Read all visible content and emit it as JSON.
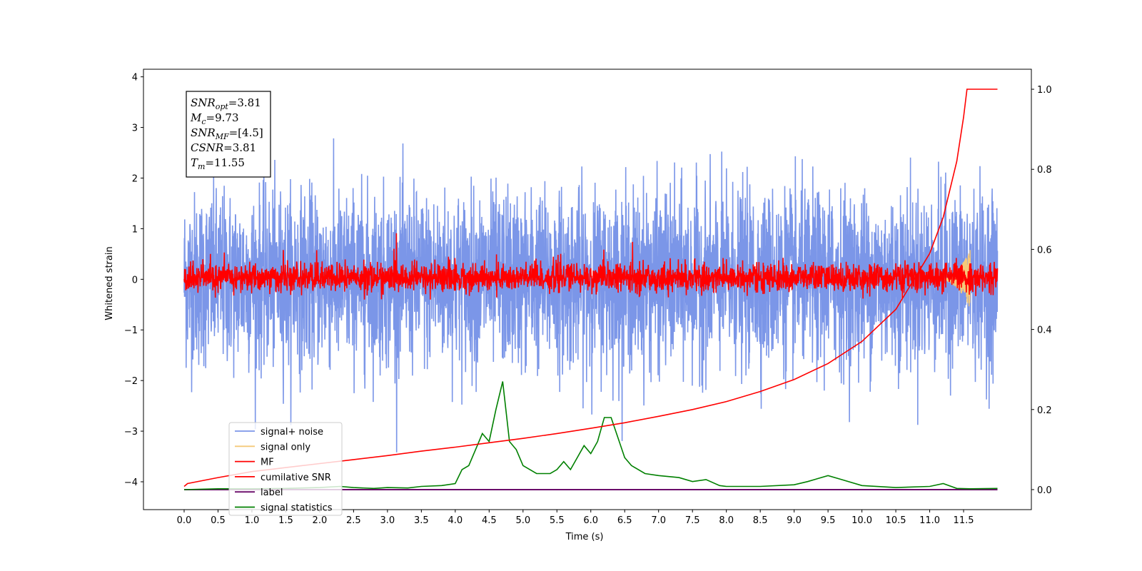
{
  "chart_data": {
    "type": "line",
    "title": "",
    "xlabel": "Time (s)",
    "ylabel": "Whitened strain",
    "ylabel_right": "",
    "xlim": [
      -0.6,
      12.5
    ],
    "ylim": [
      -4.55,
      4.15
    ],
    "ylim_right": [
      -0.05,
      1.05
    ],
    "xticks": [
      "0.0",
      "0.5",
      "1.0",
      "1.5",
      "2.0",
      "2.5",
      "3.0",
      "3.5",
      "4.0",
      "4.5",
      "5.0",
      "5.5",
      "6.0",
      "6.5",
      "7.0",
      "7.5",
      "8.0",
      "8.5",
      "9.0",
      "9.5",
      "10.0",
      "10.5",
      "11.0",
      "11.5"
    ],
    "yticks": [
      "−4",
      "−3",
      "−2",
      "−1",
      "0",
      "1",
      "2",
      "3",
      "4"
    ],
    "yticks_right": [
      "0.0",
      "0.2",
      "0.4",
      "0.6",
      "0.8",
      "1.0"
    ],
    "grid": false,
    "legend_position": "lower-left",
    "legend": [
      "signal+ noise",
      "signal only",
      "MF",
      "cumilative SNR",
      "label",
      "signal statistics"
    ],
    "annotation": {
      "lines": [
        {
          "base": "SNR",
          "sub": "opt",
          "value": "=3.81"
        },
        {
          "base": "M",
          "sub": "c",
          "value": "=9.73"
        },
        {
          "base": "SNR",
          "sub": "MF",
          "value": "=[4.5]"
        },
        {
          "base": "CSNR",
          "sub": "",
          "value": "=3.81"
        },
        {
          "base": "T",
          "sub": "m",
          "value": "=11.55"
        }
      ]
    },
    "series": [
      {
        "name": "signal+ noise",
        "axis": "left",
        "color": "#7b96e8",
        "x_range": [
          0.0,
          12.0
        ],
        "approx_band": [
          -1.6,
          1.6
        ],
        "peak_range": [
          -3.9,
          3.75
        ]
      },
      {
        "name": "signal only",
        "axis": "left",
        "color": "#f5c97a",
        "x_range": [
          11.0,
          11.6
        ],
        "peak_value": 0.6
      },
      {
        "name": "MF",
        "axis": "left",
        "color": "#ff0000",
        "x_range": [
          0.0,
          12.0
        ],
        "approx_band": [
          -0.35,
          0.45
        ],
        "peak_range": [
          -0.4,
          1.0
        ]
      },
      {
        "name": "cumilative SNR",
        "axis": "right",
        "color": "#ff0000",
        "x": [
          0.0,
          0.05,
          0.5,
          1.0,
          1.5,
          2.0,
          2.5,
          3.0,
          3.5,
          4.0,
          4.5,
          5.0,
          5.5,
          6.0,
          6.5,
          7.0,
          7.5,
          8.0,
          8.5,
          9.0,
          9.5,
          10.0,
          10.5,
          11.0,
          11.2,
          11.4,
          11.5,
          11.55,
          12.0
        ],
        "values": [
          0.008,
          0.015,
          0.03,
          0.045,
          0.055,
          0.065,
          0.075,
          0.085,
          0.096,
          0.106,
          0.117,
          0.128,
          0.14,
          0.153,
          0.167,
          0.183,
          0.2,
          0.22,
          0.245,
          0.275,
          0.315,
          0.37,
          0.45,
          0.59,
          0.68,
          0.82,
          0.93,
          1.0,
          1.0
        ]
      },
      {
        "name": "label",
        "axis": "right",
        "color": "#6a0a6a",
        "x": [
          0.0,
          12.0
        ],
        "values": [
          0.0,
          0.0
        ]
      },
      {
        "name": "signal statistics",
        "axis": "right",
        "color": "#008000",
        "x": [
          0.0,
          0.5,
          1.0,
          1.5,
          2.0,
          2.3,
          2.5,
          2.8,
          3.0,
          3.3,
          3.5,
          3.8,
          4.0,
          4.1,
          4.2,
          4.3,
          4.4,
          4.5,
          4.6,
          4.7,
          4.8,
          4.9,
          5.0,
          5.2,
          5.4,
          5.5,
          5.6,
          5.7,
          5.8,
          5.9,
          6.0,
          6.1,
          6.2,
          6.3,
          6.4,
          6.5,
          6.6,
          6.8,
          7.0,
          7.3,
          7.5,
          7.7,
          7.9,
          8.0,
          8.5,
          9.0,
          9.2,
          9.5,
          9.7,
          10.0,
          10.5,
          11.0,
          11.2,
          11.4,
          11.6,
          12.0
        ],
        "values": [
          0.0,
          0.002,
          0.002,
          0.003,
          0.005,
          0.008,
          0.005,
          0.003,
          0.005,
          0.004,
          0.008,
          0.01,
          0.015,
          0.05,
          0.06,
          0.1,
          0.14,
          0.12,
          0.2,
          0.27,
          0.12,
          0.1,
          0.06,
          0.04,
          0.04,
          0.05,
          0.07,
          0.05,
          0.08,
          0.11,
          0.09,
          0.12,
          0.18,
          0.18,
          0.13,
          0.08,
          0.06,
          0.04,
          0.035,
          0.03,
          0.02,
          0.025,
          0.01,
          0.008,
          0.008,
          0.012,
          0.02,
          0.035,
          0.025,
          0.01,
          0.005,
          0.008,
          0.015,
          0.003,
          0.002,
          0.003
        ]
      }
    ]
  }
}
